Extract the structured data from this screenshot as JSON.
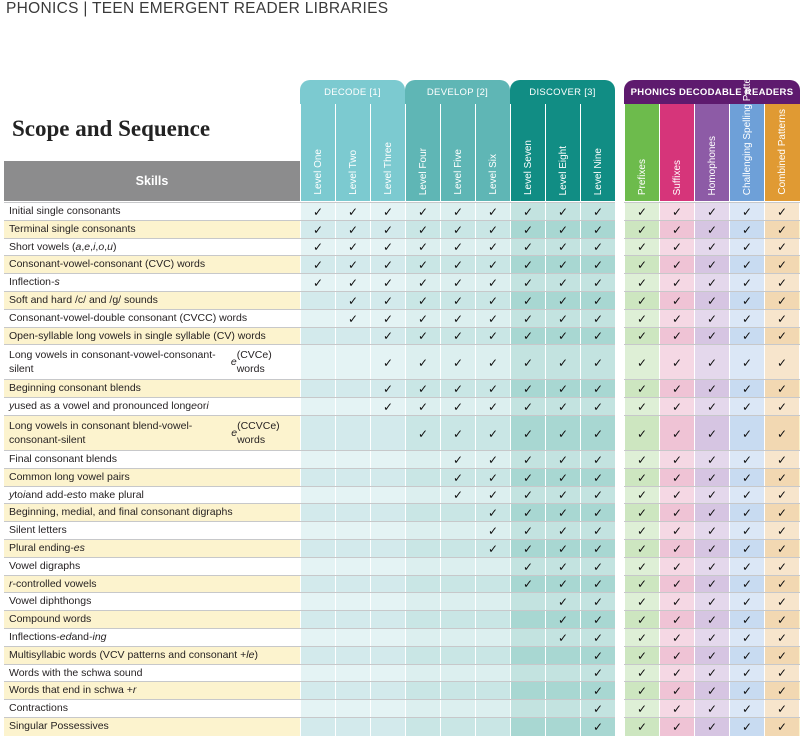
{
  "header": {
    "top_line": "PHONICS | TEEN EMERGENT READER LIBRARIES"
  },
  "title": "Scope and Sequence",
  "groups": {
    "decode": "DECODE [1]",
    "develop": "DEVELOP [2]",
    "discover": "DISCOVER [3]",
    "phonics": "PHONICS DECODABLE READERS"
  },
  "skills_header": "Skills",
  "columns": [
    "Level One",
    "Level Two",
    "Level Three",
    "Level Four",
    "Level Five",
    "Level Six",
    "Level Seven",
    "Level Eight",
    "Level Nine",
    "Prefixes",
    "Suffixes",
    "Homophones",
    "Challenging Spelling Patterns",
    "Combined Patterns"
  ],
  "check_mark": "✓",
  "colors": {
    "decode": "#7ccad0",
    "develop": "#5fb6b5",
    "discover": "#118d84",
    "phonics": "#5e1a6e",
    "prefixes": "#6dbb4c",
    "suffixes": "#d6357a",
    "homophones": "#8d5ba6",
    "challenging": "#6ea0d8",
    "combined": "#e09a33",
    "highlight_row": "#fcf3ce"
  },
  "rows": [
    {
      "skill": "Initial single consonants",
      "start": 1,
      "highlight": false
    },
    {
      "skill": "Terminal single consonants",
      "start": 1,
      "highlight": true
    },
    {
      "skill": "Short vowels (a, e, i, o, u)",
      "start": 1,
      "highlight": false
    },
    {
      "skill": "Consonant-vowel-consonant (CVC) words",
      "start": 1,
      "highlight": true
    },
    {
      "skill": "Inflection -s",
      "start": 1,
      "highlight": false
    },
    {
      "skill": "Soft and hard /c/ and /g/ sounds",
      "start": 2,
      "highlight": true
    },
    {
      "skill": "Consonant-vowel-double consonant (CVCC) words",
      "start": 2,
      "highlight": false
    },
    {
      "skill": "Open-syllable long vowels in single syllable (CV) words",
      "start": 3,
      "highlight": true
    },
    {
      "skill": "Long vowels in consonant-vowel-consonant-silent e (CVCe) words",
      "start": 3,
      "highlight": false,
      "tall": true
    },
    {
      "skill": "Beginning consonant blends",
      "start": 3,
      "highlight": true
    },
    {
      "skill": "y used as a vowel and pronounced long e or i",
      "start": 3,
      "highlight": false
    },
    {
      "skill": "Long vowels in consonant blend-vowel-consonant-silent e (CCVCe) words",
      "start": 4,
      "highlight": true,
      "tall": true
    },
    {
      "skill": "Final consonant blends",
      "start": 5,
      "highlight": false
    },
    {
      "skill": "Common long vowel pairs",
      "start": 5,
      "highlight": true
    },
    {
      "skill": "y to i and add -es to make plural",
      "start": 5,
      "highlight": false
    },
    {
      "skill": "Beginning, medial, and final consonant digraphs",
      "start": 6,
      "highlight": true
    },
    {
      "skill": "Silent letters",
      "start": 6,
      "highlight": false
    },
    {
      "skill": "Plural ending -es",
      "start": 6,
      "highlight": true
    },
    {
      "skill": "Vowel digraphs",
      "start": 7,
      "highlight": false
    },
    {
      "skill": "r-controlled vowels",
      "start": 7,
      "highlight": true
    },
    {
      "skill": "Vowel diphthongs",
      "start": 8,
      "highlight": false
    },
    {
      "skill": "Compound words",
      "start": 8,
      "highlight": true
    },
    {
      "skill": "Inflections -ed and -ing",
      "start": 8,
      "highlight": false
    },
    {
      "skill": "Multisyllabic words (VCV patterns and consonant + le)",
      "start": 9,
      "highlight": true
    },
    {
      "skill": "Words with the schwa sound",
      "start": 9,
      "highlight": false
    },
    {
      "skill": "Words that end in schwa + r",
      "start": 9,
      "highlight": true
    },
    {
      "skill": "Contractions",
      "start": 9,
      "highlight": false
    },
    {
      "skill": "Singular Possessives",
      "start": 9,
      "highlight": true
    }
  ]
}
